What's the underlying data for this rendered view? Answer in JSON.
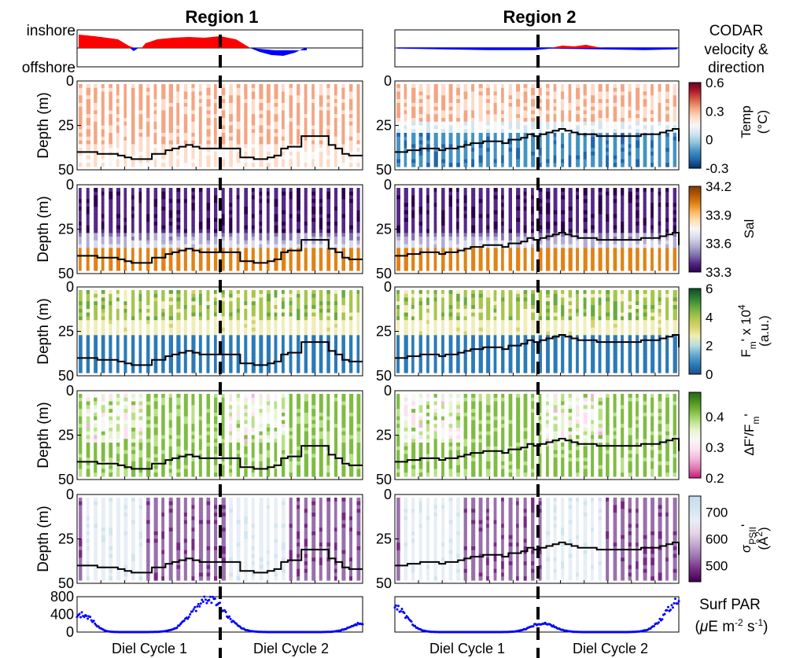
{
  "panel_titles": [
    "Region 1",
    "Region 2"
  ],
  "codar": {
    "label_lines": [
      "CODAR",
      "velocity &",
      "direction"
    ],
    "inshore_label": "inshore",
    "offshore_label": "offshore",
    "inshore_color": "#ff0000",
    "offshore_color": "#0000ff"
  },
  "depth_axis": {
    "label": "Depth (m)",
    "ticks": [
      "0",
      "25",
      "50"
    ],
    "range": [
      0,
      50
    ]
  },
  "panels": [
    {
      "id": "temp",
      "colorbar_label": "Temp (°C)",
      "colorbar_ticks": [
        "0.6",
        "0.3",
        "0",
        "-0.3"
      ],
      "colorbar_range": [
        -0.3,
        0.6
      ],
      "colormap": [
        "#053061",
        "#2166ac",
        "#4393c3",
        "#92c5de",
        "#d1e5f0",
        "#f7f7f7",
        "#fddbc7",
        "#f4a582",
        "#d6604d",
        "#b2182b",
        "#67001f"
      ]
    },
    {
      "id": "sal",
      "colorbar_label": "Sal",
      "colorbar_ticks": [
        "34.2",
        "33.9",
        "33.6",
        "33.3"
      ],
      "colorbar_range": [
        33.3,
        34.2
      ],
      "colormap": [
        "#2d004b",
        "#542788",
        "#8073ac",
        "#b2abd2",
        "#d8daeb",
        "#f7f7f7",
        "#fee0b6",
        "#fdb863",
        "#e08214",
        "#b35806",
        "#7f3b08"
      ]
    },
    {
      "id": "fm",
      "colorbar_label": "Fm' x 10^4 (a.u.)",
      "colorbar_ticks": [
        "6",
        "4",
        "2",
        "0"
      ],
      "colorbar_range": [
        0,
        6
      ],
      "colormap": [
        "#1f4e8c",
        "#2a7ab8",
        "#5fa8cf",
        "#b5dde0",
        "#f2ecb5",
        "#d7d36a",
        "#a7c64b",
        "#6aab3e",
        "#2d7f32",
        "#104b24"
      ]
    },
    {
      "id": "fvfm",
      "colorbar_label": "ΔF'/Fm'",
      "colorbar_ticks": [
        "0.4",
        "0.3",
        "0.2"
      ],
      "colorbar_range": [
        0.2,
        0.48
      ],
      "colormap": [
        "#c51b7d",
        "#de77ae",
        "#f1b6da",
        "#fde0ef",
        "#f7f7f7",
        "#e6f5d0",
        "#b8e186",
        "#7fbc41",
        "#4d9221",
        "#276419"
      ]
    },
    {
      "id": "sigma",
      "colorbar_label": "σPSII' (Å²)",
      "colorbar_ticks": [
        "700",
        "600",
        "500"
      ],
      "colorbar_range": [
        440,
        760
      ],
      "colormap": [
        "#40004b",
        "#762a83",
        "#9970ab",
        "#c2a5cf",
        "#e7d4e8",
        "#e8eef6",
        "#d1e5f0",
        "#c6dbef"
      ]
    }
  ],
  "par": {
    "label_lines": [
      "Surf PAR",
      "(μE m-2 s-1)"
    ],
    "ticks": [
      "800",
      "400",
      "0"
    ],
    "range": [
      0,
      800
    ],
    "color": "#0000ff"
  },
  "diel_labels": [
    "Diel Cycle 1",
    "Diel Cycle 2"
  ],
  "chart_data": {
    "type": "heatmap",
    "x": [
      0.0,
      0.25,
      0.5,
      0.75,
      1.0,
      1.25,
      1.5,
      1.75,
      2.0
    ],
    "series": [
      {
        "region": "Region 1",
        "variable": "mixed layer depth",
        "values": [
          40,
          41,
          44,
          39,
          38,
          44,
          42,
          31,
          42
        ]
      },
      {
        "region": "Region 2",
        "variable": "mixed layer depth",
        "values": [
          40,
          38,
          34,
          33,
          29,
          30,
          31,
          31,
          34
        ]
      },
      {
        "region": "Region 1",
        "variable": "Surf PAR",
        "values": [
          200,
          0,
          0,
          300,
          700,
          0,
          0,
          0,
          200
        ]
      },
      {
        "region": "Region 2",
        "variable": "Surf PAR",
        "values": [
          500,
          50,
          0,
          0,
          100,
          200,
          0,
          0,
          650
        ]
      }
    ],
    "ylim": [
      0,
      50
    ]
  }
}
